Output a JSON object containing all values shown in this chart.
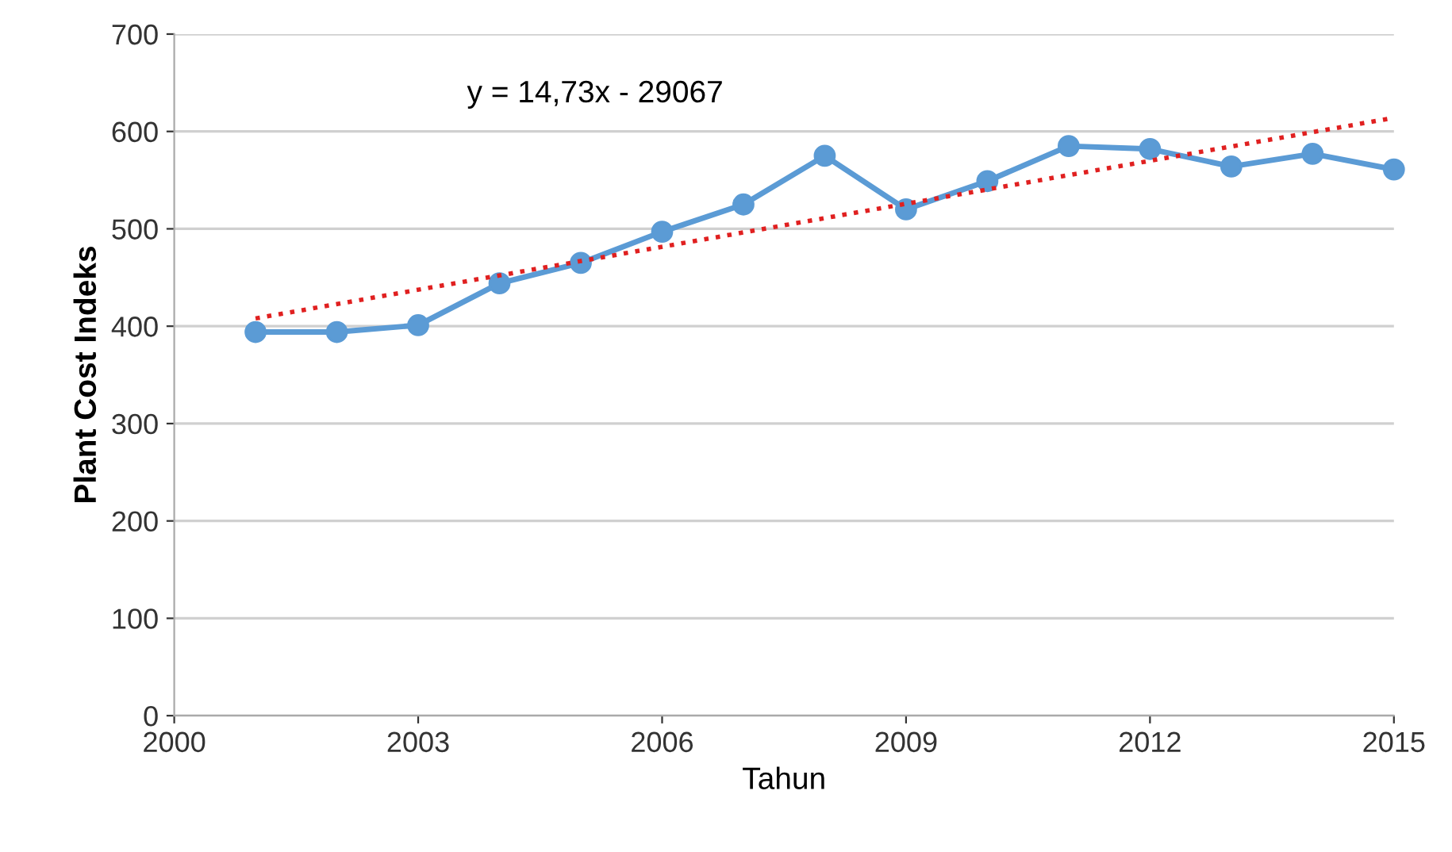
{
  "chart_data": {
    "type": "line",
    "xlabel": "Tahun",
    "ylabel": "Plant Cost Indeks",
    "series": [
      {
        "color": "#5b9bd5",
        "marker": "circle",
        "line_style": "solid",
        "x": [
          2001,
          2002,
          2003,
          2004,
          2005,
          2006,
          2007,
          2008,
          2009,
          2010,
          2011,
          2012,
          2013,
          2014,
          2015
        ],
        "values": [
          394,
          394,
          401,
          444,
          465,
          497,
          525,
          575,
          520,
          549,
          585,
          582,
          564,
          577,
          561
        ]
      },
      {
        "color": "#e02020",
        "marker": "none",
        "line_style": "dotted",
        "x": [
          2001,
          2015
        ],
        "values": [
          408,
          614
        ]
      }
    ],
    "annotations": [
      "y = 14,73x - 29067"
    ],
    "xlim": [
      2000,
      2015
    ],
    "xticks": [
      2000,
      2003,
      2006,
      2009,
      2012,
      2015
    ],
    "ylim": [
      0,
      700
    ],
    "yticks": [
      0,
      100,
      200,
      300,
      400,
      500,
      600,
      700
    ],
    "grid": "y",
    "legend": false
  }
}
